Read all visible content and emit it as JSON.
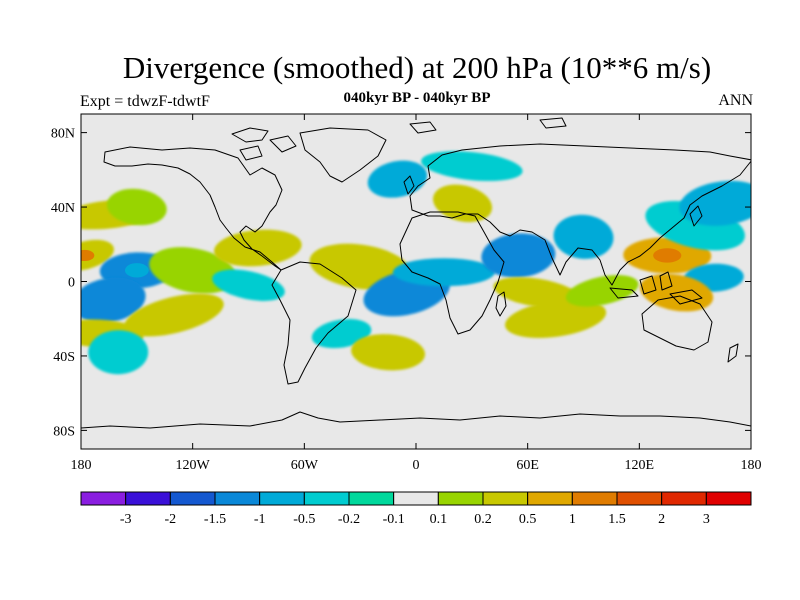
{
  "title": "Divergence (smoothed) at 200 hPa (10**6 m/s)",
  "subtitle": "040kyr BP - 040kyr BP",
  "left_label": "Expt = tdwzF-tdwtF",
  "right_label": "ANN",
  "axes": {
    "lat_ticks": [
      {
        "value": 80,
        "label": "80N"
      },
      {
        "value": 40,
        "label": "40N"
      },
      {
        "value": 0,
        "label": "0"
      },
      {
        "value": -40,
        "label": "40S"
      },
      {
        "value": -80,
        "label": "80S"
      }
    ],
    "lon_ticks": [
      {
        "value": -180,
        "label": "180"
      },
      {
        "value": -120,
        "label": "120W"
      },
      {
        "value": -60,
        "label": "60W"
      },
      {
        "value": 0,
        "label": "0"
      },
      {
        "value": 60,
        "label": "60E"
      },
      {
        "value": 120,
        "label": "120E"
      },
      {
        "value": 180,
        "label": "180"
      }
    ],
    "lat_range": [
      -90,
      90
    ],
    "lon_range": [
      -180,
      180
    ]
  },
  "colorbar": {
    "colors": [
      "#8a1ee0",
      "#3a10d8",
      "#1458d0",
      "#0a88d8",
      "#00aad8",
      "#00ccd0",
      "#00d89c",
      "#e8e8e8",
      "#98d400",
      "#c8c800",
      "#e0a800",
      "#e07c00",
      "#e05000",
      "#e02800",
      "#e00000"
    ],
    "labels": [
      "-3",
      "-2",
      "-1.5",
      "-1",
      "-0.5",
      "-0.2",
      "-0.1",
      "0.1",
      "0.2",
      "0.5",
      "1",
      "1.5",
      "2",
      "3"
    ]
  },
  "chart_data": {
    "type": "heatmap",
    "title": "Divergence (smoothed) at 200 hPa (10**6 m/s)",
    "grid": false,
    "features": [
      {
        "lon": -178,
        "lat": 14,
        "level": 9,
        "core": 11
      },
      {
        "lon": -150,
        "lat": 6,
        "level": 3,
        "core": 4
      },
      {
        "lon": -120,
        "lat": 6,
        "level": 8
      },
      {
        "lon": -165,
        "lat": 36,
        "level": 9
      },
      {
        "lon": -150,
        "lat": 40,
        "level": 8
      },
      {
        "lon": -165,
        "lat": -10,
        "level": 3
      },
      {
        "lon": -170,
        "lat": -28,
        "level": 9
      },
      {
        "lon": -130,
        "lat": -18,
        "level": 9
      },
      {
        "lon": -160,
        "lat": -38,
        "level": 5
      },
      {
        "lon": -90,
        "lat": -2,
        "level": 5
      },
      {
        "lon": -85,
        "lat": 18,
        "level": 9
      },
      {
        "lon": -30,
        "lat": 8,
        "level": 9
      },
      {
        "lon": -40,
        "lat": -28,
        "level": 5
      },
      {
        "lon": -15,
        "lat": -38,
        "level": 9
      },
      {
        "lon": -5,
        "lat": -6,
        "level": 3
      },
      {
        "lon": 15,
        "lat": 5,
        "level": 4
      },
      {
        "lon": 25,
        "lat": 42,
        "level": 9
      },
      {
        "lon": 55,
        "lat": 14,
        "level": 3
      },
      {
        "lon": 65,
        "lat": -6,
        "level": 9
      },
      {
        "lon": 75,
        "lat": -20,
        "level": 9
      },
      {
        "lon": 90,
        "lat": 24,
        "level": 4
      },
      {
        "lon": 100,
        "lat": -5,
        "level": 8
      },
      {
        "lon": 135,
        "lat": 14,
        "level": 10,
        "core": 11
      },
      {
        "lon": 150,
        "lat": 30,
        "level": 5
      },
      {
        "lon": 160,
        "lat": 2,
        "level": 4
      },
      {
        "lon": 140,
        "lat": -6,
        "level": 10
      },
      {
        "lon": 165,
        "lat": 42,
        "level": 4
      },
      {
        "lon": 30,
        "lat": 62,
        "level": 5
      },
      {
        "lon": -10,
        "lat": 55,
        "level": 4
      }
    ]
  }
}
